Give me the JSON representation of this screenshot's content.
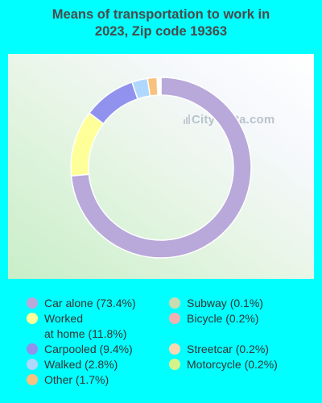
{
  "title_line1": "Means of transportation to work in",
  "title_line2": "2023, Zip code 19363",
  "watermark": "City-Data.com",
  "chart_data": {
    "type": "pie",
    "variant": "donut",
    "title": "Means of transportation to work in 2023, Zip code 19363",
    "slices": [
      {
        "name": "Car alone",
        "value": 73.4,
        "color": "#b9a8da"
      },
      {
        "name": "Worked at home",
        "value": 11.8,
        "color": "#ffff99"
      },
      {
        "name": "Carpooled",
        "value": 9.4,
        "color": "#9191ee"
      },
      {
        "name": "Walked",
        "value": 2.8,
        "color": "#b0d8ff"
      },
      {
        "name": "Other",
        "value": 1.7,
        "color": "#f7c27e"
      },
      {
        "name": "Subway",
        "value": 0.1,
        "color": "#c9dbb1"
      },
      {
        "name": "Bicycle",
        "value": 0.2,
        "color": "#f2b0b0"
      },
      {
        "name": "Streetcar",
        "value": 0.2,
        "color": "#fad9b0"
      },
      {
        "name": "Motorcycle",
        "value": 0.2,
        "color": "#d6f28a"
      }
    ],
    "legend": {
      "left": [
        {
          "label": "Car alone (73.4%)",
          "color": "#b9a8da"
        },
        {
          "label": "Worked",
          "label2": "at home (11.8%)",
          "color": "#ffff99"
        },
        {
          "label": "Carpooled (9.4%)",
          "color": "#9191ee"
        },
        {
          "label": "Walked (2.8%)",
          "color": "#b0d8ff"
        },
        {
          "label": "Other (1.7%)",
          "color": "#f7c27e"
        }
      ],
      "right": [
        {
          "label": "Subway (0.1%)",
          "color": "#c9dbb1"
        },
        {
          "label": "Bicycle (0.2%)",
          "color": "#f2b0b0"
        },
        {
          "label": "Streetcar (0.2%)",
          "color": "#fad9b0"
        },
        {
          "label": "Motorcycle (0.2%)",
          "color": "#d6f28a"
        }
      ]
    }
  }
}
